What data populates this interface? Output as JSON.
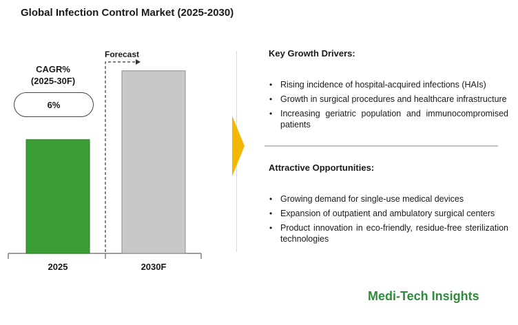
{
  "title": "Global Infection Control Market (2025-2030)",
  "cagr": {
    "label_line1": "CAGR%",
    "label_line2": "(2025-30F)",
    "value": "6%"
  },
  "forecast_label": "Forecast",
  "colors": {
    "bar_2025": "#3a9d33",
    "bar_2030": "#c8c8c8",
    "chevron": "#f5b800",
    "brand": "#2e8b3a"
  },
  "chart_data": {
    "type": "bar",
    "categories": [
      "2025",
      "2030F"
    ],
    "values": [
      162,
      260
    ],
    "value_units": "relative (no values printed)",
    "ylim": [
      0,
      300
    ],
    "grid": false,
    "legend": "none"
  },
  "drivers": {
    "title": "Key Growth Drivers:",
    "items": [
      "Rising incidence of hospital-acquired infections (HAIs)",
      "Growth in surgical procedures and healthcare infrastructure",
      "Increasing geriatric population and immunocompromised patients"
    ]
  },
  "opportunities": {
    "title": "Attractive Opportunities:",
    "items": [
      "Growing demand for single-use medical devices",
      "Expansion of outpatient and ambulatory surgical centers",
      "Product innovation in eco-friendly, residue-free sterilization technologies"
    ]
  },
  "brand": "Medi-Tech Insights"
}
